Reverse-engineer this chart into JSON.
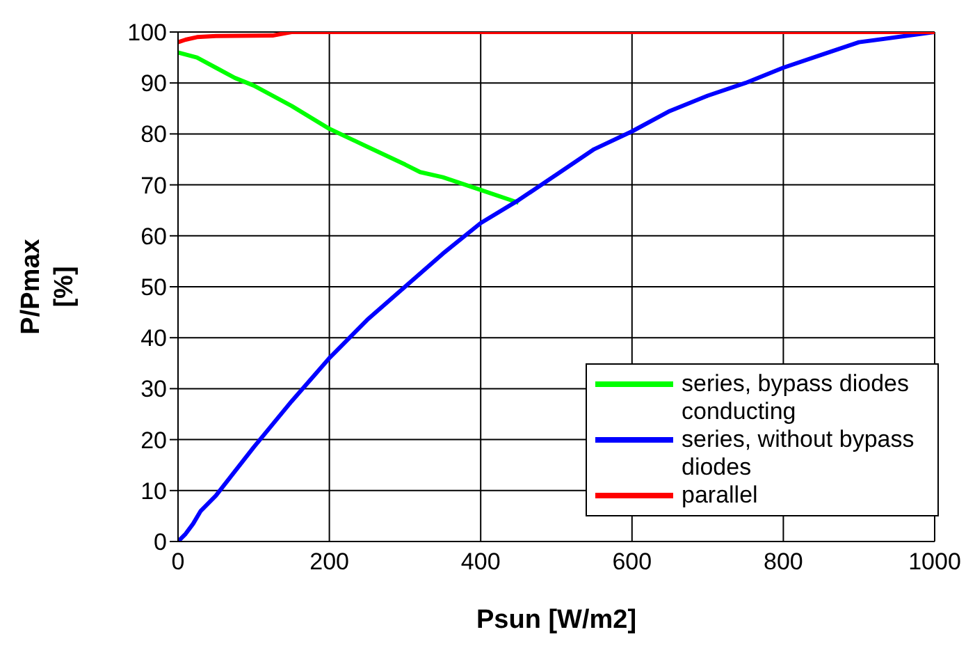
{
  "chart_data": {
    "type": "line",
    "xlabel": "Psun [W/m2]",
    "ylabel": "P/Pmax [%]",
    "xlim": [
      0,
      1000
    ],
    "xticks": [
      0,
      200,
      400,
      600,
      800,
      1000
    ],
    "ylim": [
      0,
      100
    ],
    "yticks": [
      0,
      10,
      20,
      30,
      40,
      50,
      60,
      70,
      80,
      90,
      100
    ],
    "grid": true,
    "legend": "bottom right",
    "marker": "none",
    "line_style": "solid",
    "series": [
      {
        "name": "series, bypass diodes conducting",
        "color": "#00ff00",
        "x": [
          0,
          25,
          50,
          75,
          100,
          150,
          200,
          250,
          300,
          320,
          350,
          400,
          450
        ],
        "values": [
          96,
          95,
          93,
          91,
          89.5,
          85.5,
          81,
          77.5,
          74,
          72.5,
          71.5,
          69,
          66.5
        ]
      },
      {
        "name": "series, without bypass diodes",
        "color": "#0000ff",
        "x": [
          0,
          10,
          20,
          30,
          50,
          100,
          150,
          200,
          250,
          300,
          350,
          400,
          450,
          500,
          550,
          600,
          650,
          700,
          750,
          800,
          850,
          900,
          1000
        ],
        "values": [
          0,
          1.5,
          3.5,
          6,
          9,
          18.5,
          27.5,
          36,
          43.5,
          50,
          56.5,
          62.5,
          67,
          72,
          77,
          80.5,
          84.5,
          87.5,
          90,
          93,
          95.5,
          98,
          100
        ]
      },
      {
        "name": "parallel",
        "color": "#ff0000",
        "x": [
          0,
          10,
          25,
          50,
          125,
          150,
          1000
        ],
        "values": [
          98,
          98.5,
          99,
          99.2,
          99.3,
          100,
          100
        ]
      }
    ]
  }
}
